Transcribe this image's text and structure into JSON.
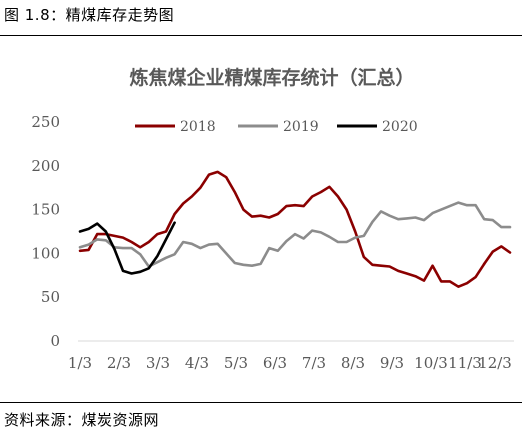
{
  "figure_caption": "图 1.8：精煤库存走势图",
  "source_note": "资料来源：煤炭资源网",
  "chart_data": {
    "type": "line",
    "title": "炼焦煤企业精煤库存统计（汇总）",
    "xlabel": "",
    "ylabel": "",
    "ylim": [
      0,
      250
    ],
    "yticks": [
      0,
      50,
      100,
      150,
      200,
      250
    ],
    "x_tick_labels": [
      "1/3",
      "2/3",
      "3/3",
      "4/3",
      "5/3",
      "6/3",
      "7/3",
      "8/3",
      "9/3",
      "10/3",
      "11/3",
      "12/3"
    ],
    "x_tick_positions": [
      1,
      5,
      9,
      13,
      17,
      21,
      25,
      29,
      33,
      37,
      41,
      45
    ],
    "xlim": [
      1,
      48
    ],
    "grid": false,
    "legend_position": "top",
    "series": [
      {
        "name": "2018",
        "color": "#8B0000",
        "x": [
          1,
          2,
          3,
          4,
          5,
          6,
          7,
          8,
          9,
          10,
          11,
          12,
          13,
          14,
          15,
          16,
          17,
          18,
          19,
          20,
          21,
          22,
          23,
          24,
          25,
          26,
          27,
          28,
          29,
          30,
          31,
          32,
          33,
          34,
          35,
          36,
          37,
          38,
          39,
          40,
          41,
          42,
          43,
          44,
          45,
          46,
          47,
          48
        ],
        "values": [
          103,
          104,
          122,
          122,
          120,
          118,
          113,
          107,
          113,
          122,
          125,
          145,
          157,
          165,
          175,
          190,
          193,
          187,
          170,
          150,
          142,
          143,
          141,
          145,
          154,
          155,
          154,
          165,
          170,
          176,
          165,
          150,
          125,
          96,
          87,
          86,
          85,
          80,
          77,
          74,
          69,
          86,
          68,
          68,
          62,
          66,
          73,
          88
        ]
      },
      {
        "name": "2018",
        "color": "#8B0000",
        "x": [
          48,
          49,
          50,
          51
        ],
        "values": [
          88,
          102,
          108,
          101
        ]
      },
      {
        "name": "2019",
        "color": "#8C8C8C",
        "x": [
          1,
          2,
          3,
          4,
          5,
          6,
          7,
          8,
          9,
          10,
          11,
          12,
          13,
          14,
          15,
          16,
          17,
          18,
          19,
          20,
          21,
          22,
          23,
          24,
          25,
          26,
          27,
          28,
          29,
          30,
          31,
          32,
          33,
          34,
          35,
          36,
          37,
          38,
          39,
          40,
          41,
          42,
          43,
          44,
          45,
          46,
          47,
          48,
          49,
          50,
          51
        ],
        "values": [
          107,
          110,
          116,
          115,
          107,
          106,
          106,
          99,
          85,
          90,
          95,
          99,
          113,
          111,
          106,
          110,
          111,
          100,
          89,
          87,
          86,
          88,
          106,
          103,
          114,
          122,
          117,
          126,
          124,
          119,
          113,
          113,
          118,
          120,
          136,
          148,
          143,
          139,
          140,
          141,
          138,
          146,
          150,
          154,
          158,
          155,
          155,
          139,
          138,
          130,
          130
        ]
      },
      {
        "name": "2020",
        "color": "#000000",
        "x": [
          1,
          2,
          3,
          4,
          5,
          6,
          7,
          8,
          9,
          10,
          11,
          12
        ],
        "values": [
          125,
          128,
          134,
          125,
          105,
          80,
          77,
          79,
          83,
          97,
          116,
          135
        ]
      }
    ],
    "legend": [
      {
        "label": "2018",
        "color": "#8B0000"
      },
      {
        "label": "2019",
        "color": "#8C8C8C"
      },
      {
        "label": "2020",
        "color": "#000000"
      }
    ]
  }
}
